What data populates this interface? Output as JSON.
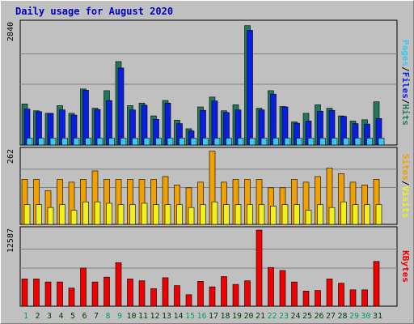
{
  "chart_data": {
    "type": "bar",
    "title": "Daily usage for August 2020",
    "categories": [
      "1",
      "2",
      "3",
      "4",
      "5",
      "6",
      "7",
      "8",
      "9",
      "10",
      "11",
      "12",
      "13",
      "14",
      "15",
      "16",
      "17",
      "18",
      "19",
      "20",
      "21",
      "22",
      "23",
      "24",
      "25",
      "26",
      "27",
      "28",
      "29",
      "30",
      "31"
    ],
    "weekend_days": [
      "1",
      "8",
      "9",
      "15",
      "16",
      "22",
      "23",
      "29",
      "30"
    ],
    "colors": {
      "hits": "#1f7a5c",
      "files": "#0a1ee0",
      "pages": "#38c8f0",
      "visits": "#f0a000",
      "sites": "#f0f020",
      "kbytes": "#f00000",
      "weekday_label": "#004000",
      "weekend_label": "#00a060"
    },
    "panels": [
      {
        "id": "hits-files-pages",
        "ymax_label": "2840",
        "ymax": 2840,
        "grid_values": [
          1420,
          2130
        ],
        "legend": [
          "Pages",
          "Files",
          "Hits"
        ],
        "series": [
          {
            "name": "Hits",
            "key": "hits",
            "values": [
              960,
              800,
              740,
              920,
              740,
              1310,
              860,
              1270,
              1950,
              920,
              980,
              680,
              1040,
              580,
              380,
              890,
              1120,
              800,
              940,
              2790,
              860,
              1270,
              900,
              540,
              740,
              940,
              860,
              680,
              560,
              590,
              1010
            ]
          },
          {
            "name": "Files",
            "key": "files",
            "values": [
              840,
              780,
              740,
              820,
              700,
              1280,
              830,
              1040,
              1800,
              820,
              930,
              600,
              980,
              500,
              330,
              810,
              1030,
              760,
              820,
              2680,
              820,
              1190,
              890,
              510,
              560,
              790,
              810,
              670,
              500,
              490,
              620
            ]
          },
          {
            "name": "Pages",
            "key": "pages",
            "values": [
              160,
              160,
              160,
              160,
              160,
              160,
              160,
              160,
              160,
              160,
              160,
              160,
              160,
              160,
              160,
              160,
              160,
              160,
              160,
              160,
              160,
              160,
              160,
              160,
              160,
              160,
              160,
              160,
              160,
              160,
              160
            ]
          }
        ]
      },
      {
        "id": "visits-sites",
        "ymax_label": "262",
        "ymax": 262,
        "grid_values": [
          131,
          196
        ],
        "legend": [
          "Sites",
          "Visits"
        ],
        "series": [
          {
            "name": "Visits",
            "key": "visits",
            "values": [
              160,
              160,
              120,
              160,
              150,
              160,
              190,
              160,
              160,
              160,
              160,
              160,
              170,
              140,
              130,
              150,
              260,
              150,
              160,
              160,
              160,
              130,
              130,
              160,
              150,
              170,
              200,
              180,
              150,
              140,
              160
            ]
          },
          {
            "name": "Sites",
            "key": "sites",
            "values": [
              70,
              70,
              60,
              70,
              50,
              80,
              80,
              75,
              70,
              70,
              75,
              70,
              70,
              70,
              60,
              70,
              80,
              70,
              70,
              70,
              70,
              65,
              70,
              70,
              50,
              70,
              60,
              80,
              70,
              70,
              70
            ]
          }
        ]
      },
      {
        "id": "kbytes",
        "ymax_label": "12587",
        "ymax": 12587,
        "grid_values": [
          6293,
          9440
        ],
        "legend": [
          "KBytes"
        ],
        "series": [
          {
            "name": "KBytes",
            "key": "kbytes",
            "values": [
              4500,
              4500,
              4000,
              4000,
              3000,
              6300,
              4000,
              4800,
              7200,
              4500,
              4200,
              2900,
              4700,
              3400,
              1900,
              4100,
              3200,
              4900,
              3600,
              4200,
              12587,
              6400,
              5900,
              4000,
              2500,
              2600,
              4500,
              3800,
              2700,
              2700,
              7400
            ]
          }
        ]
      }
    ]
  }
}
